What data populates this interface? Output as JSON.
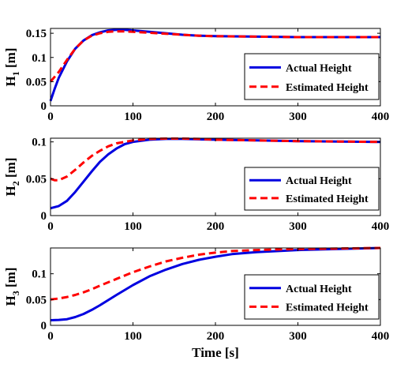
{
  "chart_data": [
    {
      "type": "line",
      "ylabel": "H",
      "ylabel_sub": "1",
      "ylabel_unit": "[m]",
      "xlabel": "",
      "xlim": [
        0,
        400
      ],
      "ylim": [
        0,
        0.16
      ],
      "xticks": [
        0,
        100,
        200,
        300,
        400
      ],
      "yticks": [
        0,
        0.05,
        0.1,
        0.15
      ],
      "ytick_labels": [
        "0",
        "0.05",
        "0.1",
        "0.15"
      ],
      "legend_position": "lower-right",
      "grid": false,
      "series": [
        {
          "name": "Actual Height",
          "color": "#0000e0",
          "style": "solid",
          "x": [
            0,
            5,
            10,
            20,
            30,
            40,
            50,
            60,
            70,
            80,
            90,
            100,
            120,
            140,
            160,
            180,
            200,
            250,
            300,
            350,
            400
          ],
          "y": [
            0.01,
            0.035,
            0.058,
            0.092,
            0.118,
            0.135,
            0.146,
            0.152,
            0.156,
            0.157,
            0.157,
            0.156,
            0.153,
            0.15,
            0.147,
            0.145,
            0.144,
            0.143,
            0.142,
            0.142,
            0.142
          ]
        },
        {
          "name": "Estimated Height",
          "color": "#ff0000",
          "style": "dashed",
          "x": [
            0,
            5,
            10,
            20,
            30,
            40,
            50,
            60,
            70,
            80,
            90,
            100,
            120,
            140,
            160,
            180,
            200,
            250,
            300,
            350,
            400
          ],
          "y": [
            0.05,
            0.06,
            0.07,
            0.095,
            0.118,
            0.135,
            0.145,
            0.15,
            0.153,
            0.154,
            0.154,
            0.153,
            0.151,
            0.149,
            0.147,
            0.145,
            0.144,
            0.143,
            0.142,
            0.142,
            0.142
          ]
        }
      ]
    },
    {
      "type": "line",
      "ylabel": "H",
      "ylabel_sub": "2",
      "ylabel_unit": "[m]",
      "xlabel": "",
      "xlim": [
        0,
        400
      ],
      "ylim": [
        0,
        0.105
      ],
      "xticks": [
        0,
        100,
        200,
        300,
        400
      ],
      "yticks": [
        0,
        0.05,
        0.1
      ],
      "ytick_labels": [
        "0",
        "0.05",
        "0.1"
      ],
      "legend_position": "lower-right",
      "grid": false,
      "series": [
        {
          "name": "Actual Height",
          "color": "#0000e0",
          "style": "solid",
          "x": [
            0,
            10,
            20,
            30,
            40,
            50,
            60,
            70,
            80,
            90,
            100,
            120,
            140,
            160,
            180,
            200,
            250,
            300,
            350,
            400
          ],
          "y": [
            0.01,
            0.013,
            0.02,
            0.032,
            0.046,
            0.06,
            0.073,
            0.083,
            0.091,
            0.097,
            0.1,
            0.103,
            0.104,
            0.104,
            0.1035,
            0.103,
            0.102,
            0.101,
            0.1005,
            0.1
          ]
        },
        {
          "name": "Estimated Height",
          "color": "#ff0000",
          "style": "dashed",
          "x": [
            0,
            5,
            10,
            20,
            30,
            40,
            50,
            60,
            70,
            80,
            90,
            100,
            120,
            140,
            160,
            180,
            200,
            250,
            300,
            350,
            400
          ],
          "y": [
            0.05,
            0.048,
            0.048,
            0.053,
            0.062,
            0.072,
            0.081,
            0.088,
            0.094,
            0.098,
            0.1,
            0.102,
            0.104,
            0.1045,
            0.1045,
            0.104,
            0.103,
            0.102,
            0.101,
            0.1005,
            0.1
          ]
        }
      ]
    },
    {
      "type": "line",
      "ylabel": "H",
      "ylabel_sub": "3",
      "ylabel_unit": "[m]",
      "xlabel": "Time [s]",
      "xlim": [
        0,
        400
      ],
      "ylim": [
        0,
        0.15
      ],
      "xticks": [
        0,
        100,
        200,
        300,
        400
      ],
      "yticks": [
        0,
        0.05,
        0.1
      ],
      "ytick_labels": [
        "0",
        "0.05",
        "0.1"
      ],
      "legend_position": "lower-right",
      "grid": false,
      "series": [
        {
          "name": "Actual Height",
          "color": "#0000e0",
          "style": "solid",
          "x": [
            0,
            10,
            20,
            30,
            40,
            50,
            60,
            80,
            100,
            120,
            140,
            160,
            180,
            200,
            220,
            250,
            300,
            350,
            400
          ],
          "y": [
            0.01,
            0.0105,
            0.012,
            0.016,
            0.022,
            0.03,
            0.039,
            0.059,
            0.078,
            0.095,
            0.108,
            0.119,
            0.127,
            0.133,
            0.138,
            0.142,
            0.146,
            0.148,
            0.15
          ]
        },
        {
          "name": "Estimated Height",
          "color": "#ff0000",
          "style": "dashed",
          "x": [
            0,
            10,
            20,
            30,
            40,
            50,
            60,
            80,
            100,
            120,
            140,
            160,
            180,
            200,
            220,
            250,
            300,
            350,
            400
          ],
          "y": [
            0.05,
            0.052,
            0.055,
            0.059,
            0.064,
            0.07,
            0.077,
            0.09,
            0.103,
            0.114,
            0.124,
            0.131,
            0.137,
            0.141,
            0.144,
            0.146,
            0.148,
            0.149,
            0.15
          ]
        }
      ]
    }
  ]
}
